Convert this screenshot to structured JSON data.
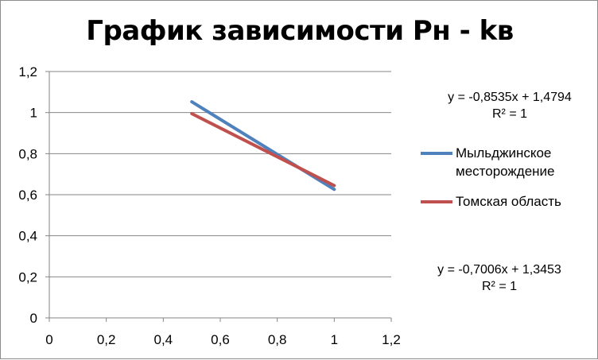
{
  "chart_data": {
    "type": "line",
    "title": "График зависимости Pн - kв",
    "xlabel": "",
    "ylabel": "",
    "xlim": [
      0,
      1.2
    ],
    "ylim": [
      0,
      1.2
    ],
    "x_ticks": [
      "0",
      "0,2",
      "0,4",
      "0,6",
      "0,8",
      "1",
      "1,2"
    ],
    "y_ticks": [
      "0",
      "0,2",
      "0,4",
      "0,6",
      "0,8",
      "1",
      "1,2"
    ],
    "grid": "horizontal",
    "legend_position": "right",
    "series": [
      {
        "name": "Мыльджинское месторождение",
        "color": "#4f81bd",
        "x": [
          0.5,
          1
        ],
        "y": [
          1.05265,
          0.6259
        ],
        "trendline": "y = -0,8535x + 1,4794",
        "r2": "R² = 1"
      },
      {
        "name": "Томская область",
        "color": "#c0504d",
        "x": [
          0.5,
          1
        ],
        "y": [
          0.995,
          0.6447
        ],
        "trendline": "y = -0,7006x + 1,3453",
        "r2": "R² = 1"
      }
    ]
  }
}
